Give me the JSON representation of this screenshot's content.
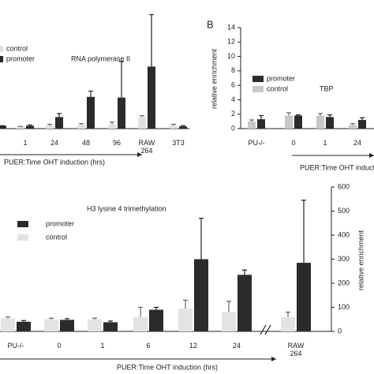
{
  "chart_data": [
    {
      "type": "bar",
      "title": "RNA polymerase II",
      "x_label": "PUER:Time OHT induction (hrs)",
      "categories": [
        null,
        "1",
        "24",
        "48",
        "96",
        "RAW 264",
        "3T3"
      ],
      "ylim": [
        0,
        14
      ],
      "series": [
        {
          "name": "control",
          "color": "#e0e0e0",
          "values": [
            0.3,
            0.3,
            0.4,
            0.5,
            0.6,
            1.6,
            0.4
          ],
          "errors": [
            0,
            0,
            0.2,
            0.2,
            0.3,
            0.2,
            0.2
          ]
        },
        {
          "name": "promoter",
          "color": "#2b2b2b",
          "values": [
            0.4,
            0.4,
            1.6,
            4.4,
            4.3,
            8.6,
            0.3
          ],
          "errors": [
            0,
            0.1,
            0.5,
            0.8,
            5,
            7.2,
            0.1
          ]
        }
      ]
    },
    {
      "type": "bar",
      "letter": "B",
      "title": "TBP",
      "y_label": "relative enrichment",
      "x_label": "PUER:Time OHT induction (hrs)",
      "categories": [
        "PU-/-",
        "0",
        "1",
        "24"
      ],
      "ylim": [
        0,
        14
      ],
      "yticks": [
        0,
        2,
        4,
        6,
        8,
        10,
        12,
        14
      ],
      "series": [
        {
          "name": "promoter",
          "color": "#2b2b2b",
          "values": [
            1.3,
            1.8,
            1.6,
            1.2
          ],
          "errors": [
            0.5,
            0.1,
            0.3,
            0.3
          ]
        },
        {
          "name": "control",
          "color": "#c8c8c8",
          "values": [
            1.0,
            1.8,
            1.8,
            0.5
          ],
          "errors": [
            0.2,
            0.4,
            0.3,
            0.2
          ]
        }
      ]
    },
    {
      "type": "bar",
      "title": "H3 lysine 4 trimethylation",
      "y_label": "relative enrichment",
      "x_label": "PUER:Time OHT induction (hrs)",
      "categories": [
        "PU-/-",
        "0",
        "1",
        "6",
        "12",
        "24",
        "RAW 264"
      ],
      "ylim": [
        0,
        600
      ],
      "yticks": [
        0,
        100,
        200,
        300,
        400,
        500,
        600
      ],
      "series": [
        {
          "name": "promoter",
          "color": "#2b2b2b",
          "values": [
            40,
            48,
            38,
            90,
            300,
            235,
            285
          ],
          "errors": [
            5,
            5,
            5,
            10,
            170,
            20,
            260
          ]
        },
        {
          "name": "control",
          "color": "#e3e3e3",
          "values": [
            55,
            50,
            50,
            60,
            95,
            80,
            60
          ],
          "errors": [
            5,
            5,
            5,
            40,
            35,
            45,
            20
          ]
        }
      ]
    }
  ]
}
